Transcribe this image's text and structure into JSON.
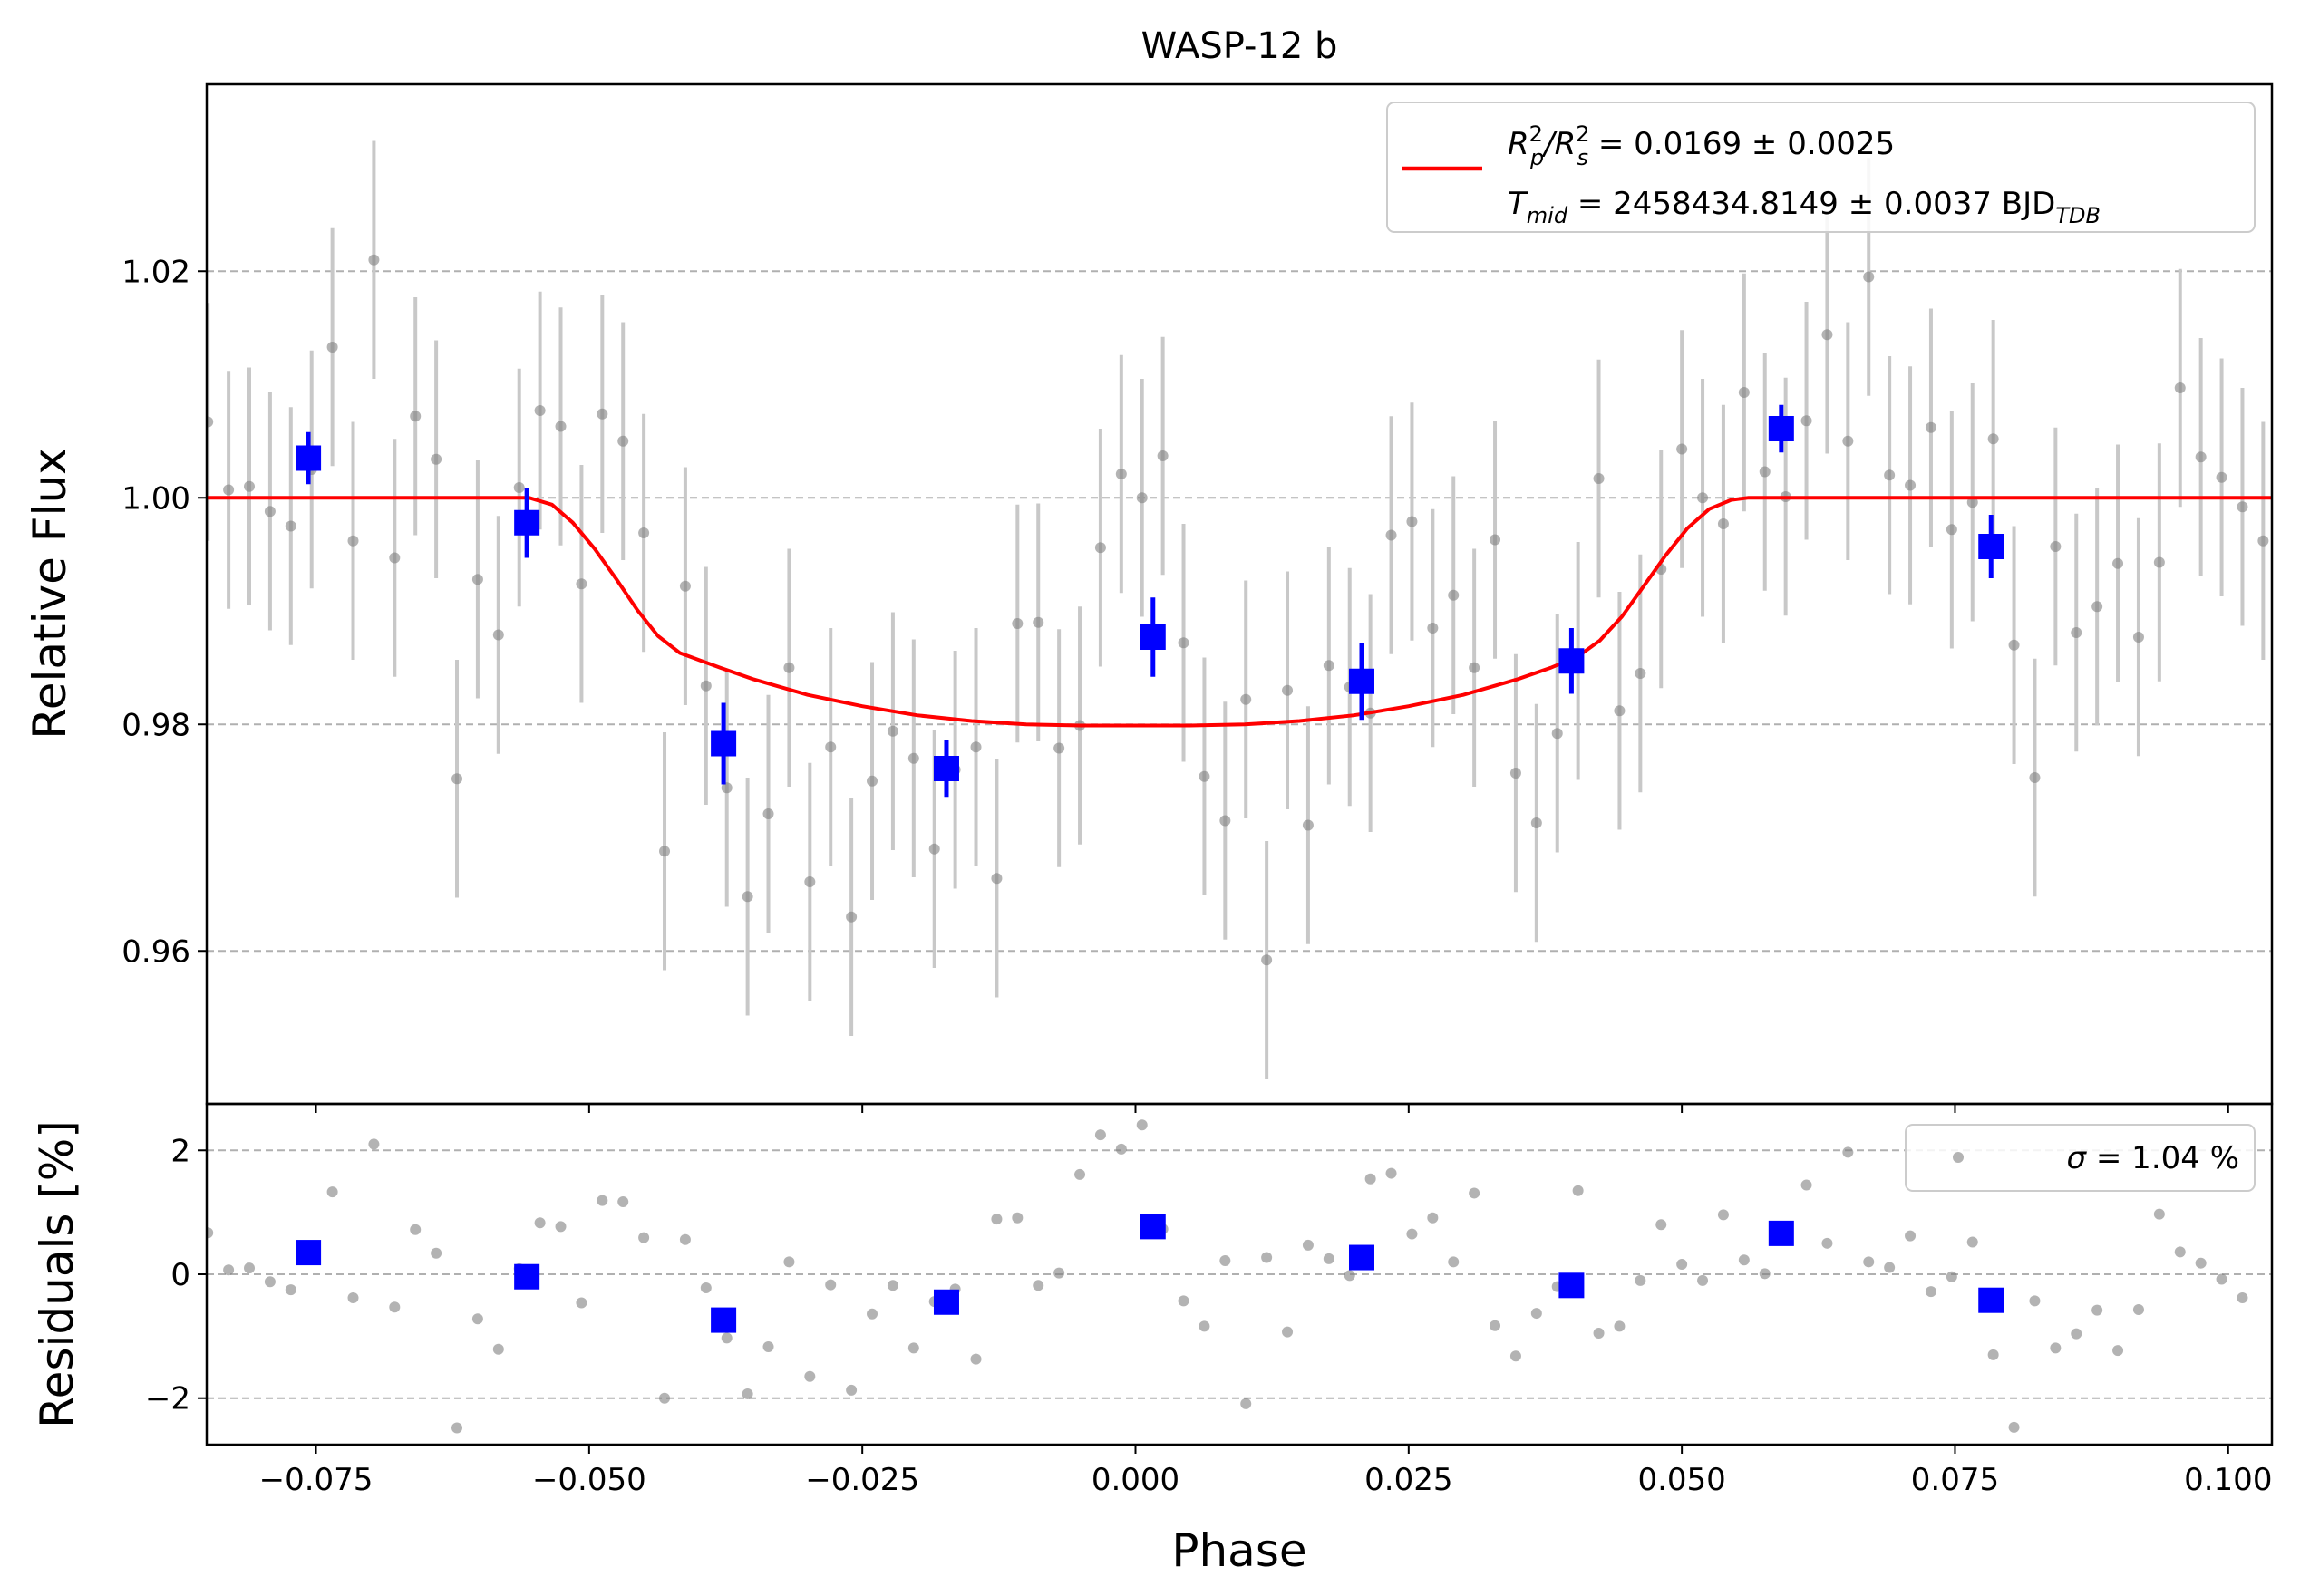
{
  "chart_data": [
    {
      "type": "scatter",
      "panel": "main",
      "title": "WASP-12 b",
      "xlabel": "",
      "ylabel": "Relative Flux",
      "xlim": [
        -0.085,
        0.104
      ],
      "ylim": [
        0.9465,
        1.0365
      ],
      "x_ticks": [
        -0.075,
        -0.05,
        -0.025,
        0.0,
        0.025,
        0.05,
        0.075,
        0.1
      ],
      "x_tick_labels": [
        "−0.075",
        "−0.050",
        "−0.025",
        "0.000",
        "0.025",
        "0.050",
        "0.075",
        "0.100"
      ],
      "y_ticks": [
        0.96,
        0.98,
        1.0,
        1.02
      ],
      "y_tick_labels": [
        "0.96",
        "0.98",
        "1.00",
        "1.02"
      ],
      "grid": "horizontal-dashed",
      "legend_position": "top-right",
      "legend": {
        "line1_main": "R",
        "line1_sub_p": "p",
        "line1_sup": "2",
        "line1_mid": "/R",
        "line1_sub_s": "s",
        "line1_value": " = 0.0169 ± 0.0025",
        "line2_main": "T",
        "line2_sub": "mid",
        "line2_value": " = 2458434.8149 ± 0.0037 BJD",
        "line2_unit_sub": "TDB"
      },
      "colors": {
        "data": "#808080",
        "errorbar": "#c8c8c8",
        "binned": "#0000ff",
        "model": "#ff0000",
        "grid": "#b0b0b0"
      },
      "series": [
        {
          "kind": "data",
          "x": [
            -0.0849,
            -0.083,
            -0.0811,
            -0.0792,
            -0.0773,
            -0.0754,
            -0.0735,
            -0.0716,
            -0.0697,
            -0.0678,
            -0.0659,
            -0.064,
            -0.0621,
            -0.0602,
            -0.0583,
            -0.0564,
            -0.0545,
            -0.0526,
            -0.0507,
            -0.0488,
            -0.0469,
            -0.045,
            -0.0431,
            -0.0412,
            -0.0393,
            -0.0374,
            -0.0355,
            -0.0336,
            -0.0317,
            -0.0298,
            -0.0279,
            -0.026,
            -0.0241,
            -0.0222,
            -0.0203,
            -0.0184,
            -0.0165,
            -0.0146,
            -0.0127,
            -0.0108,
            -0.0089,
            -0.007,
            -0.0051,
            -0.0032,
            -0.0013,
            0.0006,
            0.0025,
            0.0044,
            0.0063,
            0.0082,
            0.0101,
            0.012,
            0.0139,
            0.0158,
            0.0177,
            0.0196,
            0.0215,
            0.0234,
            0.0253,
            0.0272,
            0.0291,
            0.031,
            0.0329,
            0.0348,
            0.0367,
            0.0386,
            0.0405,
            0.0424,
            0.0443,
            0.0462,
            0.0481,
            0.05,
            0.0519,
            0.0538,
            0.0557,
            0.0576,
            0.0595,
            0.0614,
            0.0633,
            0.0652,
            0.0671,
            0.069,
            0.0709,
            0.0728,
            0.0747,
            0.0766,
            0.0785,
            0.0804,
            0.0823,
            0.0842,
            0.0861,
            0.088,
            0.0899,
            0.0918,
            0.0937,
            0.0956,
            0.0975,
            0.0994,
            0.1013,
            0.1032
          ],
          "y": [
            1.0067,
            1.0007,
            1.001,
            0.9988,
            0.9975,
            1.0025,
            1.0133,
            0.9962,
            1.021,
            0.9947,
            1.0072,
            1.0034,
            0.9752,
            0.9928,
            0.9879,
            1.0009,
            1.0077,
            1.0063,
            0.9924,
            1.0074,
            1.005,
            0.9969,
            0.9688,
            0.9922,
            0.9834,
            0.9744,
            0.9648,
            0.9721,
            0.985,
            0.9661,
            0.978,
            0.963,
            0.975,
            0.9794,
            0.977,
            0.969,
            0.976,
            0.978,
            0.9664,
            0.9889,
            0.989,
            0.9779,
            0.9799,
            0.9956,
            1.0021,
            1.0,
            1.0037,
            0.9872,
            0.9754,
            0.9715,
            0.9822,
            0.9592,
            0.983,
            0.9711,
            0.9852,
            0.9833,
            0.981,
            0.9967,
            0.9979,
            0.9885,
            0.9914,
            0.985,
            0.9963,
            0.9757,
            0.9713,
            0.9792,
            0.9856,
            1.0017,
            0.9812,
            0.9845,
            0.9937,
            1.0043,
            1.0,
            0.9977,
            1.0093,
            1.0023,
            1.0001,
            1.0068,
            1.0144,
            1.005,
            1.0195,
            1.002,
            1.0011,
            1.0062,
            0.9972,
            0.9996,
            1.0052,
            0.987,
            0.9753,
            0.9957,
            0.9881,
            0.9904,
            0.9942,
            0.9877,
            0.9943,
            1.0097,
            1.0036,
            1.0018,
            0.9992,
            0.9962
          ],
          "yerr": 0.0105
        },
        {
          "kind": "binned",
          "x": [
            -0.0757,
            -0.0557,
            -0.0377,
            -0.0173,
            0.0016,
            0.0207,
            0.0399,
            0.0591,
            0.0783
          ],
          "y": [
            1.0035,
            0.9978,
            0.9783,
            0.9761,
            0.9877,
            0.9838,
            0.9856,
            1.0061,
            0.9957
          ],
          "yerr": [
            0.0023,
            0.0031,
            0.0036,
            0.0025,
            0.0035,
            0.0034,
            0.0029,
            0.0021,
            0.0028
          ]
        },
        {
          "kind": "model",
          "x": [
            -0.085,
            -0.0555,
            -0.0534,
            -0.0515,
            -0.0495,
            -0.0475,
            -0.0456,
            -0.0437,
            -0.0417,
            -0.04,
            -0.038,
            -0.035,
            -0.03,
            -0.025,
            -0.02,
            -0.015,
            -0.01,
            -0.005,
            0.0,
            0.005,
            0.01,
            0.015,
            0.02,
            0.025,
            0.03,
            0.035,
            0.038,
            0.0405,
            0.0425,
            0.0445,
            0.0465,
            0.0485,
            0.0505,
            0.0525,
            0.0545,
            0.0561,
            0.104
          ],
          "y": [
            1.0,
            1.0,
            0.9994,
            0.9978,
            0.9955,
            0.9928,
            0.9901,
            0.9878,
            0.9863,
            0.9857,
            0.985,
            0.984,
            0.9826,
            0.9816,
            0.9808,
            0.9803,
            0.98,
            0.9799,
            0.9799,
            0.9799,
            0.98,
            0.9803,
            0.9808,
            0.9816,
            0.9826,
            0.984,
            0.985,
            0.986,
            0.9874,
            0.9895,
            0.9922,
            0.9949,
            0.9973,
            0.999,
            0.9998,
            1.0,
            1.0
          ]
        }
      ]
    },
    {
      "type": "scatter",
      "panel": "residuals",
      "title": "",
      "xlabel": "Phase",
      "ylabel": "Residuals [%]",
      "xlim": [
        -0.085,
        0.104
      ],
      "ylim": [
        -2.75,
        2.75
      ],
      "x_ticks": [
        -0.075,
        -0.05,
        -0.025,
        0.0,
        0.025,
        0.05,
        0.075,
        0.1
      ],
      "x_tick_labels": [
        "−0.075",
        "−0.050",
        "−0.025",
        "0.000",
        "0.025",
        "0.050",
        "0.075",
        "0.100"
      ],
      "y_ticks": [
        -2,
        0,
        2
      ],
      "y_tick_labels": [
        "−2",
        "0",
        "2"
      ],
      "grid": "horizontal-dashed",
      "legend_position": "top-right",
      "legend": {
        "sigma_symbol": "σ",
        "sigma_value": " = 1.04 %"
      },
      "series": [
        {
          "kind": "data",
          "y": [
            0.67,
            0.07,
            0.1,
            -0.12,
            -0.25,
            0.34,
            1.33,
            -0.38,
            2.1,
            -0.53,
            0.72,
            0.34,
            -2.48,
            -0.72,
            -1.21,
            0.09,
            0.83,
            0.77,
            -0.46,
            1.19,
            1.17,
            0.59,
            -2.0,
            0.56,
            -0.22,
            -1.03,
            -1.93,
            -1.17,
            0.2,
            -1.65,
            -0.17,
            -1.87,
            -0.64,
            -0.18,
            -1.19,
            -0.44,
            -0.24,
            -1.37,
            0.89,
            0.91,
            -0.18,
            0.02,
            1.61,
            2.25,
            2.02,
            2.41,
            0.73,
            -0.43,
            -0.84,
            0.22,
            -2.09,
            0.27,
            -0.93,
            0.47,
            0.25,
            -0.02,
            1.54,
            1.63,
            0.65,
            0.91,
            0.2,
            1.31,
            -0.83,
            -1.32,
            -0.63,
            -0.2,
            1.35,
            -0.95,
            -0.84,
            -0.1,
            0.8,
            0.16,
            -0.1,
            0.96,
            0.23,
            0.01,
            0.68,
            1.44,
            0.5,
            1.97,
            0.2,
            0.11,
            0.62,
            -0.28,
            -0.04,
            0.52,
            -1.3,
            -2.47,
            -0.43,
            -1.19,
            -0.96,
            -0.58,
            -1.23,
            -0.57,
            0.97,
            0.36,
            0.18,
            -0.08,
            -0.38
          ]
        },
        {
          "kind": "binned",
          "y": [
            0.35,
            -0.04,
            -0.74,
            -0.45,
            0.77,
            0.27,
            -0.18,
            0.66,
            -0.42
          ]
        }
      ]
    }
  ]
}
